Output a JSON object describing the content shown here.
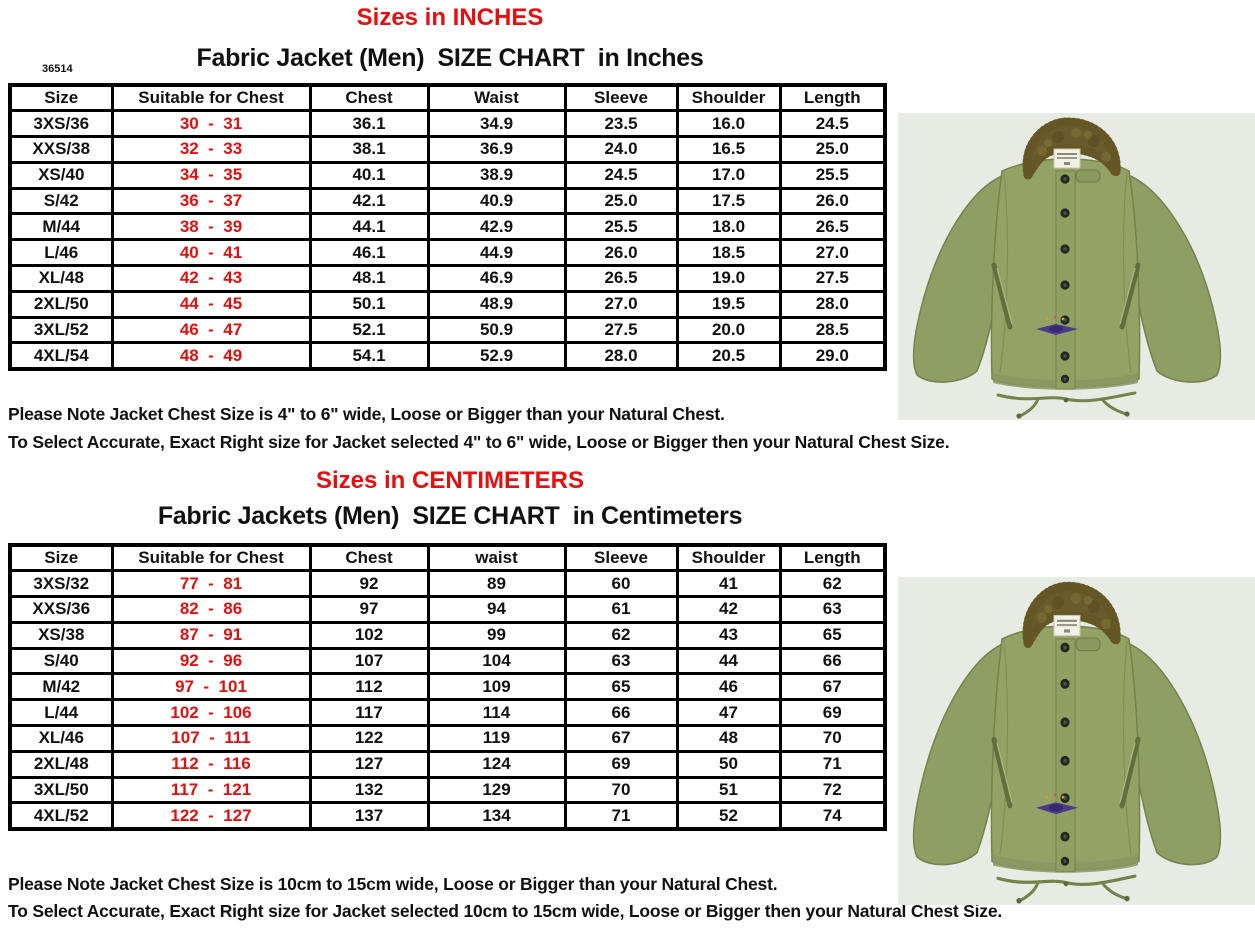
{
  "page": {
    "heading_inches": "Sizes in INCHES",
    "code": "36514",
    "title_inches": "Fabric Jacket (Men)  SIZE CHART  in Inches",
    "note_inches_1": "Please Note Jacket Chest Size is 4\" to 6\" wide, Loose or Bigger than your Natural Chest.",
    "note_inches_2": "To Select Accurate, Exact Right size for Jacket selected 4\" to 6\" wide, Loose or Bigger then your Natural Chest Size.",
    "heading_cm": "Sizes in CENTIMETERS",
    "title_cm": "Fabric Jackets (Men)  SIZE CHART  in Centimeters",
    "note_cm_1": "Please Note Jacket Chest Size is 10cm to 15cm wide, Loose or Bigger than your Natural Chest.",
    "note_cm_2": "To Select Accurate, Exact Right size for Jacket selected 10cm to 15cm wide, Loose or Bigger then your Natural Chest Size."
  },
  "colors": {
    "accent_red": "#e60f0f",
    "range_red": "#dd1111",
    "table_border": "#000000",
    "jacket_green": "#94a266",
    "collar_brown": "#6b5b2c",
    "photo_background": "#e8eae4"
  },
  "icons": {
    "jacket_photo": "olive-n1-deck-jacket-with-fur-collar"
  },
  "inches_table": {
    "headers": [
      "Size",
      "Suitable for Chest",
      "Chest",
      "Waist",
      "Sleeve",
      "Shoulder",
      "Length"
    ],
    "rows": [
      [
        "3XS/36",
        "30  -  31",
        "36.1",
        "34.9",
        "23.5",
        "16.0",
        "24.5"
      ],
      [
        "XXS/38",
        "32  -  33",
        "38.1",
        "36.9",
        "24.0",
        "16.5",
        "25.0"
      ],
      [
        "XS/40",
        "34  -  35",
        "40.1",
        "38.9",
        "24.5",
        "17.0",
        "25.5"
      ],
      [
        "S/42",
        "36  -  37",
        "42.1",
        "40.9",
        "25.0",
        "17.5",
        "26.0"
      ],
      [
        "M/44",
        "38  -  39",
        "44.1",
        "42.9",
        "25.5",
        "18.0",
        "26.5"
      ],
      [
        "L/46",
        "40  -  41",
        "46.1",
        "44.9",
        "26.0",
        "18.5",
        "27.0"
      ],
      [
        "XL/48",
        "42  -  43",
        "48.1",
        "46.9",
        "26.5",
        "19.0",
        "27.5"
      ],
      [
        "2XL/50",
        "44  -  45",
        "50.1",
        "48.9",
        "27.0",
        "19.5",
        "28.0"
      ],
      [
        "3XL/52",
        "46  -  47",
        "52.1",
        "50.9",
        "27.5",
        "20.0",
        "28.5"
      ],
      [
        "4XL/54",
        "48  -  49",
        "54.1",
        "52.9",
        "28.0",
        "20.5",
        "29.0"
      ]
    ]
  },
  "cm_table": {
    "headers": [
      "Size",
      "Suitable for Chest",
      "Chest",
      "waist",
      "Sleeve",
      "Shoulder",
      "Length"
    ],
    "rows": [
      [
        "3XS/32",
        "77  -  81",
        "92",
        "89",
        "60",
        "41",
        "62"
      ],
      [
        "XXS/36",
        "82  -  86",
        "97",
        "94",
        "61",
        "42",
        "63"
      ],
      [
        "XS/38",
        "87  -  91",
        "102",
        "99",
        "62",
        "43",
        "65"
      ],
      [
        "S/40",
        "92  -  96",
        "107",
        "104",
        "63",
        "44",
        "66"
      ],
      [
        "M/42",
        "97  -  101",
        "112",
        "109",
        "65",
        "46",
        "67"
      ],
      [
        "L/44",
        "102  -  106",
        "117",
        "114",
        "66",
        "47",
        "69"
      ],
      [
        "XL/46",
        "107  -  111",
        "122",
        "119",
        "67",
        "48",
        "70"
      ],
      [
        "2XL/48",
        "112  -  116",
        "127",
        "124",
        "69",
        "50",
        "71"
      ],
      [
        "3XL/50",
        "117  -  121",
        "132",
        "129",
        "70",
        "51",
        "72"
      ],
      [
        "4XL/52",
        "122  -  127",
        "137",
        "134",
        "71",
        "52",
        "74"
      ]
    ]
  }
}
